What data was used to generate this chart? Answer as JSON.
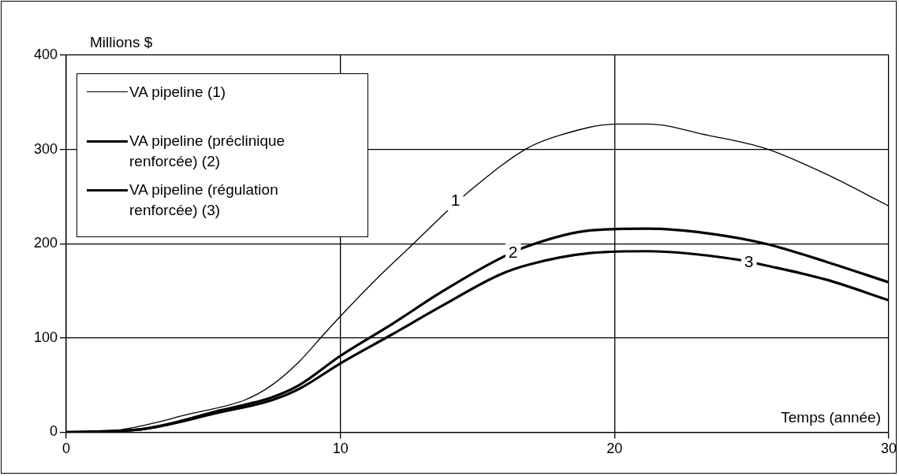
{
  "chart_data": {
    "type": "line",
    "xlabel": "Temps (année)",
    "ylabel": "Millions $",
    "xlim": [
      0,
      30
    ],
    "xticks": [
      0,
      10,
      20,
      30
    ],
    "ylim": [
      0,
      400
    ],
    "yticks": [
      0,
      100,
      200,
      300,
      400
    ],
    "grid": true,
    "legend": "top left",
    "marker": "none",
    "line_style": "solid",
    "series": [
      {
        "name": "VA pipeline (1)",
        "color": "#000000",
        "x": [
          0,
          1.8,
          4.6,
          6.5,
          7.5,
          8.5,
          9.4,
          10,
          11.4,
          12.7,
          13.8,
          14.8,
          16.8,
          18,
          20.1,
          21.2,
          23.4,
          25.5,
          27.7,
          30
        ],
        "values": [
          0,
          2,
          20,
          34,
          50,
          75,
          104,
          123,
          165,
          201,
          232,
          258,
          301,
          315,
          327,
          327,
          315,
          301,
          274,
          240
        ]
      },
      {
        "name": "VA pipeline (préclinique renforcée) (2)",
        "color": "#000000",
        "x": [
          0,
          2.7,
          5.6,
          7.5,
          8.5,
          10,
          11.9,
          13.7,
          15.8,
          16.9,
          19.1,
          21.2,
          23.4,
          25.5,
          27.7,
          30
        ],
        "values": [
          0,
          3,
          23,
          37,
          50,
          81,
          115,
          149,
          184,
          198,
          214,
          216,
          211,
          200,
          181,
          159
        ]
      },
      {
        "name": "VA pipeline (régulation renforcée) (3)",
        "color": "#000000",
        "x": [
          0,
          2.7,
          5.6,
          7.5,
          8.5,
          10,
          11.9,
          13.7,
          15.8,
          16.9,
          19.1,
          21.2,
          24.5,
          25.5,
          27.7,
          30
        ],
        "values": [
          0,
          3,
          21,
          34,
          46,
          73,
          104,
          134,
          167,
          178,
          190,
          192,
          183,
          177,
          162,
          140
        ]
      }
    ],
    "annotations": [
      {
        "text": "1",
        "x": 14.2,
        "y": 245
      },
      {
        "text": "2",
        "x": 16.3,
        "y": 190
      },
      {
        "text": "3",
        "x": 24.9,
        "y": 180
      }
    ]
  }
}
